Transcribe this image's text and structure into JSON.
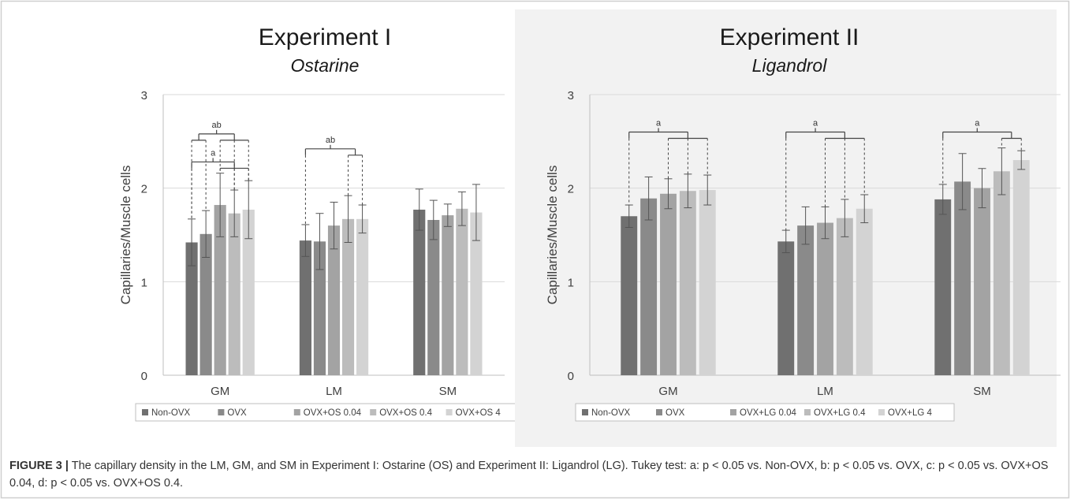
{
  "figure": {
    "caption_label": "FIGURE 3 |",
    "caption_text": "The capillary density in the LM, GM, and SM in Experiment I: Ostarine (OS) and Experiment II: Ligandrol (LG). Tukey test: a: p < 0.05 vs. Non-OVX, b: p < 0.05 vs. OVX, c: p < 0.05 vs. OVX+OS 0.04, d: p < 0.05 vs. OVX+OS 0.4."
  },
  "chart_data": [
    {
      "type": "bar",
      "title": "Experiment I",
      "subtitle": "Ostarine",
      "xlabel": "",
      "ylabel": "Capillaries/Muscle cells",
      "ylim": [
        0,
        3
      ],
      "yticks": [
        "0",
        "1",
        "2",
        "3"
      ],
      "grid": true,
      "legend_position": "bottom",
      "background": "#ffffff",
      "categories": [
        "GM",
        "LM",
        "SM"
      ],
      "series": [
        {
          "name": "Non-OVX",
          "color": "#707070",
          "values": [
            1.42,
            1.44,
            1.77
          ],
          "errors": [
            0.25,
            0.17,
            0.22
          ]
        },
        {
          "name": "OVX",
          "color": "#8a8a8a",
          "values": [
            1.51,
            1.43,
            1.66
          ],
          "errors": [
            0.25,
            0.3,
            0.21
          ]
        },
        {
          "name": "OVX+OS 0.04",
          "color": "#a3a3a3",
          "values": [
            1.82,
            1.6,
            1.71
          ],
          "errors": [
            0.34,
            0.25,
            0.12
          ]
        },
        {
          "name": "OVX+OS 0.4",
          "color": "#bcbcbc",
          "values": [
            1.73,
            1.67,
            1.78
          ],
          "errors": [
            0.25,
            0.25,
            0.18
          ]
        },
        {
          "name": "OVX+OS 4",
          "color": "#d3d3d3",
          "values": [
            1.77,
            1.67,
            1.74
          ],
          "errors": [
            0.31,
            0.15,
            0.3
          ]
        }
      ],
      "annotations": [
        {
          "label": "ab",
          "category": "GM",
          "from_bar": 0,
          "to_bar": 1,
          "group_to": [
            2,
            4
          ],
          "level": 2.58
        },
        {
          "label": "a",
          "category": "GM",
          "from_bar": 0,
          "to_bar": 0,
          "group_to": [
            2,
            4
          ],
          "level": 2.28
        },
        {
          "label": "ab",
          "category": "LM",
          "from_bar": 0,
          "to_bar": 0,
          "group_to": [
            3,
            4
          ],
          "level": 2.42
        }
      ]
    },
    {
      "type": "bar",
      "title": "Experiment II",
      "subtitle": "Ligandrol",
      "xlabel": "",
      "ylabel": "Capillaries/Muscle cells",
      "ylim": [
        0,
        3
      ],
      "yticks": [
        "0",
        "1",
        "2",
        "3"
      ],
      "grid": true,
      "legend_position": "bottom",
      "background": "#f2f2f2",
      "categories": [
        "GM",
        "LM",
        "SM"
      ],
      "series": [
        {
          "name": "Non-OVX",
          "color": "#707070",
          "values": [
            1.7,
            1.43,
            1.88
          ],
          "errors": [
            0.12,
            0.12,
            0.16
          ]
        },
        {
          "name": "OVX",
          "color": "#8a8a8a",
          "values": [
            1.89,
            1.6,
            2.07
          ],
          "errors": [
            0.23,
            0.2,
            0.3
          ]
        },
        {
          "name": "OVX+LG 0.04",
          "color": "#a3a3a3",
          "values": [
            1.94,
            1.63,
            2.0
          ],
          "errors": [
            0.16,
            0.17,
            0.21
          ]
        },
        {
          "name": "OVX+LG 0.4",
          "color": "#bcbcbc",
          "values": [
            1.97,
            1.68,
            2.18
          ],
          "errors": [
            0.18,
            0.2,
            0.25
          ]
        },
        {
          "name": "OVX+LG 4",
          "color": "#d3d3d3",
          "values": [
            1.98,
            1.78,
            2.3
          ],
          "errors": [
            0.16,
            0.15,
            0.1
          ]
        }
      ],
      "annotations": [
        {
          "label": "a",
          "category": "GM",
          "from_bar": 0,
          "to_bar": 0,
          "group_to": [
            2,
            4
          ],
          "level": 2.6
        },
        {
          "label": "a",
          "category": "LM",
          "from_bar": 0,
          "to_bar": 0,
          "group_to": [
            2,
            4
          ],
          "level": 2.6
        },
        {
          "label": "a",
          "category": "SM",
          "from_bar": 0,
          "to_bar": 0,
          "group_to": [
            3,
            4
          ],
          "level": 2.6
        }
      ]
    }
  ]
}
